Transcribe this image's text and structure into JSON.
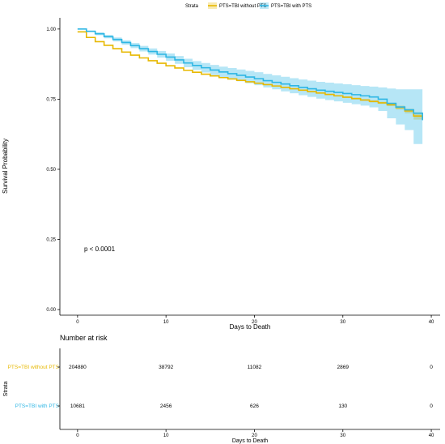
{
  "chart_data": {
    "type": "line",
    "subtype": "kaplan-meier",
    "legend": {
      "title": "Strata",
      "position": "top",
      "entries": [
        "PTS=TBI without PTS",
        "PTS=TBI with PTS"
      ]
    },
    "xlabel": "Days to Death",
    "ylabel": "Survival Probability",
    "xlim": [
      -2,
      41
    ],
    "ylim": [
      -0.02,
      1.04
    ],
    "xticks": [
      0,
      10,
      20,
      30,
      40
    ],
    "yticks": [
      0.0,
      0.25,
      0.5,
      0.75,
      1.0
    ],
    "ytick_labels": [
      "0.00",
      "0.25",
      "0.50",
      "0.75",
      "1.00"
    ],
    "grid": false,
    "annotation": "p < 0.0001",
    "series": [
      {
        "name": "PTS=TBI without PTS",
        "color": "#E7B800",
        "x": [
          0,
          1,
          2,
          3,
          4,
          5,
          6,
          7,
          8,
          9,
          10,
          11,
          12,
          13,
          14,
          15,
          16,
          17,
          18,
          19,
          20,
          21,
          22,
          23,
          24,
          25,
          26,
          27,
          28,
          29,
          30,
          31,
          32,
          33,
          34,
          35,
          36,
          37,
          38,
          39
        ],
        "values": [
          0.99,
          0.97,
          0.955,
          0.942,
          0.93,
          0.918,
          0.907,
          0.897,
          0.887,
          0.878,
          0.869,
          0.861,
          0.853,
          0.846,
          0.839,
          0.833,
          0.827,
          0.822,
          0.817,
          0.812,
          0.807,
          0.802,
          0.797,
          0.792,
          0.787,
          0.782,
          0.777,
          0.772,
          0.767,
          0.762,
          0.757,
          0.752,
          0.747,
          0.742,
          0.737,
          0.73,
          0.72,
          0.708,
          0.69,
          0.68
        ],
        "ci_upper": [
          0.99,
          0.97,
          0.955,
          0.942,
          0.93,
          0.918,
          0.907,
          0.897,
          0.887,
          0.878,
          0.869,
          0.861,
          0.853,
          0.846,
          0.839,
          0.833,
          0.827,
          0.822,
          0.817,
          0.812,
          0.807,
          0.802,
          0.798,
          0.793,
          0.788,
          0.783,
          0.779,
          0.774,
          0.769,
          0.764,
          0.76,
          0.755,
          0.75,
          0.746,
          0.741,
          0.735,
          0.727,
          0.716,
          0.703,
          0.695
        ],
        "ci_lower": [
          0.99,
          0.97,
          0.955,
          0.942,
          0.93,
          0.918,
          0.907,
          0.897,
          0.887,
          0.878,
          0.869,
          0.861,
          0.853,
          0.846,
          0.839,
          0.833,
          0.827,
          0.822,
          0.817,
          0.812,
          0.807,
          0.802,
          0.796,
          0.791,
          0.786,
          0.781,
          0.775,
          0.77,
          0.765,
          0.76,
          0.754,
          0.749,
          0.744,
          0.738,
          0.733,
          0.725,
          0.713,
          0.7,
          0.677,
          0.665
        ]
      },
      {
        "name": "PTS=TBI with PTS",
        "color": "#2EB6E4",
        "x": [
          0,
          1,
          2,
          3,
          4,
          5,
          6,
          7,
          8,
          9,
          10,
          11,
          12,
          13,
          14,
          15,
          16,
          17,
          18,
          19,
          20,
          21,
          22,
          23,
          24,
          25,
          26,
          27,
          28,
          29,
          30,
          31,
          32,
          33,
          34,
          35,
          36,
          37,
          38,
          39
        ],
        "values": [
          1.0,
          0.992,
          0.983,
          0.973,
          0.963,
          0.952,
          0.941,
          0.93,
          0.92,
          0.91,
          0.9,
          0.89,
          0.879,
          0.87,
          0.862,
          0.854,
          0.847,
          0.841,
          0.835,
          0.829,
          0.823,
          0.816,
          0.81,
          0.804,
          0.798,
          0.792,
          0.787,
          0.782,
          0.778,
          0.774,
          0.77,
          0.766,
          0.762,
          0.758,
          0.75,
          0.735,
          0.722,
          0.712,
          0.7,
          0.675
        ],
        "ci_upper": [
          1.0,
          0.995,
          0.988,
          0.979,
          0.97,
          0.96,
          0.95,
          0.94,
          0.931,
          0.922,
          0.913,
          0.904,
          0.894,
          0.886,
          0.879,
          0.872,
          0.866,
          0.861,
          0.856,
          0.851,
          0.846,
          0.84,
          0.835,
          0.83,
          0.825,
          0.82,
          0.816,
          0.812,
          0.809,
          0.806,
          0.803,
          0.8,
          0.797,
          0.795,
          0.792,
          0.788,
          0.785,
          0.785,
          0.785,
          0.785
        ],
        "ci_lower": [
          1.0,
          0.989,
          0.978,
          0.967,
          0.956,
          0.944,
          0.932,
          0.92,
          0.909,
          0.898,
          0.887,
          0.876,
          0.864,
          0.854,
          0.845,
          0.836,
          0.828,
          0.821,
          0.814,
          0.807,
          0.8,
          0.792,
          0.785,
          0.778,
          0.771,
          0.764,
          0.758,
          0.752,
          0.747,
          0.742,
          0.737,
          0.732,
          0.727,
          0.721,
          0.708,
          0.682,
          0.66,
          0.64,
          0.59,
          0.59
        ]
      }
    ],
    "risk_table": {
      "title": "Number at risk",
      "ylabel": "Strata",
      "xlabel": "Days to Death",
      "time_points": [
        0,
        10,
        20,
        30,
        40
      ],
      "rows": [
        {
          "name": "PTS=TBI without PTS",
          "color": "#E7B800",
          "values": [
            "204880",
            "38792",
            "11082",
            "2869",
            "0"
          ]
        },
        {
          "name": "PTS=TBI with PTS",
          "color": "#2EB6E4",
          "values": [
            "10681",
            "2456",
            "626",
            "130",
            "0"
          ]
        }
      ]
    }
  }
}
